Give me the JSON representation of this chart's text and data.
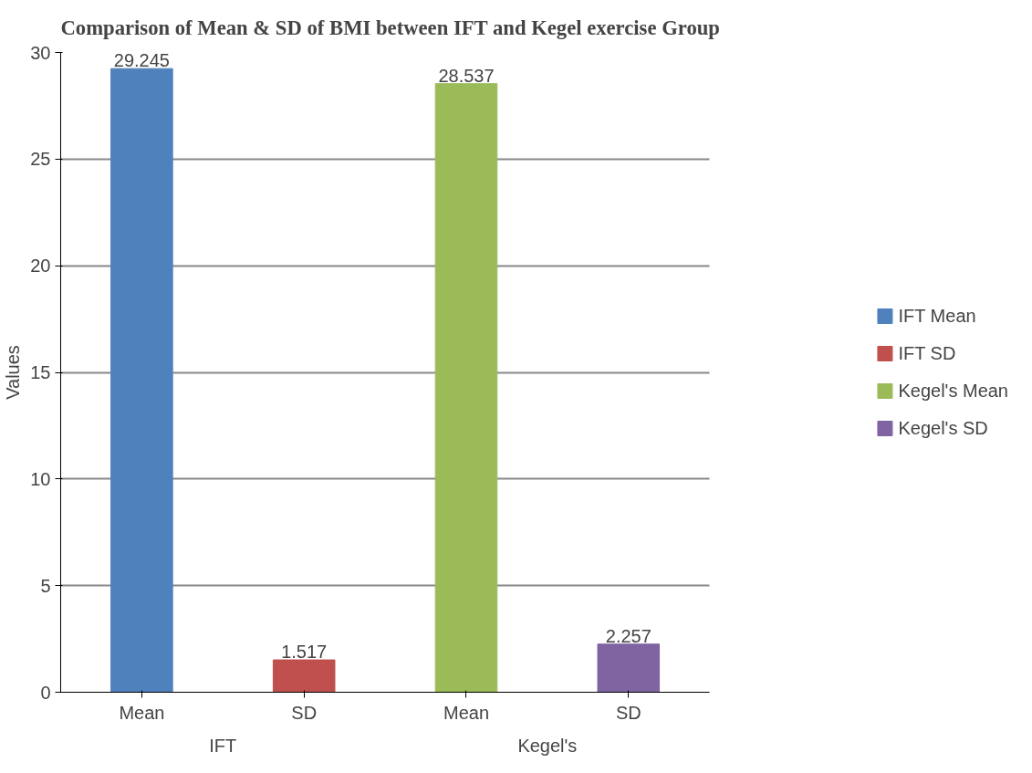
{
  "chart_data": {
    "type": "bar",
    "title": "Comparison of Mean & SD of BMI between IFT and Kegel exercise Group",
    "ylabel": "Values",
    "categories": [
      "Mean",
      "SD",
      "Mean",
      "SD"
    ],
    "annotations": [
      "IFT",
      "Kegel's"
    ],
    "series": [
      {
        "name": "IFT Mean",
        "color": "#4f81bd",
        "values": [
          29.245,
          null,
          null,
          null
        ]
      },
      {
        "name": "IFT SD",
        "color": "#c0504d",
        "values": [
          null,
          1.517,
          null,
          null
        ]
      },
      {
        "name": "Kegel's Mean",
        "color": "#9bbb59",
        "values": [
          null,
          null,
          28.537,
          null
        ]
      },
      {
        "name": "Kegel's SD",
        "color": "#8064a2",
        "values": [
          null,
          null,
          null,
          2.257
        ]
      }
    ],
    "ylim": [
      0,
      30
    ],
    "yticks": [
      0,
      5,
      10,
      15,
      20,
      25,
      30
    ],
    "grid": "y",
    "legend": "right",
    "data_labels": true
  }
}
